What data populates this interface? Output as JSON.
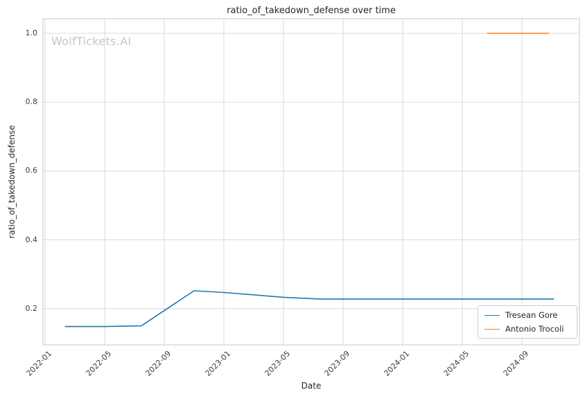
{
  "watermark": "WolfTickets.AI",
  "chart_data": {
    "type": "line",
    "title": "ratio_of_takedown_defense over time",
    "xlabel": "Date",
    "ylabel": "ratio_of_takedown_defense",
    "grid": true,
    "legend_position": "lower right",
    "x_ticks": [
      "2022-01",
      "2022-05",
      "2022-09",
      "2023-01",
      "2023-05",
      "2023-09",
      "2024-01",
      "2024-05",
      "2024-09"
    ],
    "y_ticks": [
      0.2,
      0.4,
      0.6,
      0.8,
      1.0
    ],
    "ylim": [
      0.095,
      1.043
    ],
    "xlim": [
      "2022-01-01",
      "2024-12-28"
    ],
    "series": [
      {
        "name": "Tresean Gore",
        "color": "#1f77b4",
        "points": [
          {
            "x": "2022-02-12",
            "y": 0.148
          },
          {
            "x": "2022-05-01",
            "y": 0.148
          },
          {
            "x": "2022-07-15",
            "y": 0.15
          },
          {
            "x": "2022-11-01",
            "y": 0.252
          },
          {
            "x": "2023-01-01",
            "y": 0.247
          },
          {
            "x": "2023-05-01",
            "y": 0.233
          },
          {
            "x": "2023-07-15",
            "y": 0.228
          },
          {
            "x": "2024-11-05",
            "y": 0.228
          }
        ]
      },
      {
        "name": "Antonio Trocoli",
        "color": "#ff7f0e",
        "points": [
          {
            "x": "2024-06-22",
            "y": 1.0
          },
          {
            "x": "2024-10-25",
            "y": 1.0
          }
        ]
      }
    ]
  }
}
